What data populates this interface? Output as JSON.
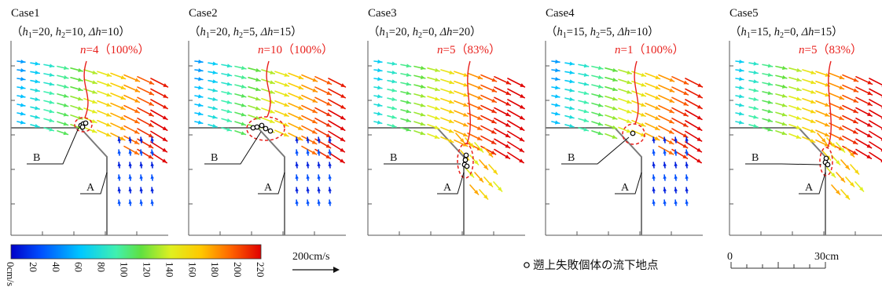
{
  "panels": [
    {
      "case": "Case1",
      "cond": {
        "h1": "20",
        "h2": "10",
        "dh": "10"
      },
      "n": "4",
      "pct": "（100%）",
      "label_b": "B",
      "label_a": "A"
    },
    {
      "case": "Case2",
      "cond": {
        "h1": "20",
        "h2": "5",
        "dh": "15"
      },
      "n": "10",
      "pct": "（100%）",
      "label_b": "B",
      "label_a": "A"
    },
    {
      "case": "Case3",
      "cond": {
        "h1": "20",
        "h2": "0",
        "dh": "20"
      },
      "n": "5",
      "pct": "（83%）",
      "label_b": "B",
      "label_a": "A"
    },
    {
      "case": "Case4",
      "cond": {
        "h1": "15",
        "h2": "5",
        "dh": "10"
      },
      "n": "1",
      "pct": "（100%）",
      "label_b": "B",
      "label_a": "A"
    },
    {
      "case": "Case5",
      "cond": {
        "h1": "15",
        "h2": "0",
        "dh": "15"
      },
      "n": "5",
      "pct": "（83%）",
      "label_b": "B",
      "label_a": "A"
    }
  ],
  "colorbar": {
    "ticks": [
      "0cm/s",
      "20",
      "40",
      "60",
      "80",
      "100",
      "120",
      "140",
      "160",
      "180",
      "200",
      "220"
    ],
    "range": [
      0,
      220
    ]
  },
  "reference_vector": "200cm/s",
  "marker_legend": "遡上失敗個体の流下地点",
  "scale_bar": {
    "start": "0",
    "end": "30cm"
  },
  "colors": {
    "annotation": "#e8201c",
    "structure": "#7a7a7a",
    "marker": "#000000"
  }
}
